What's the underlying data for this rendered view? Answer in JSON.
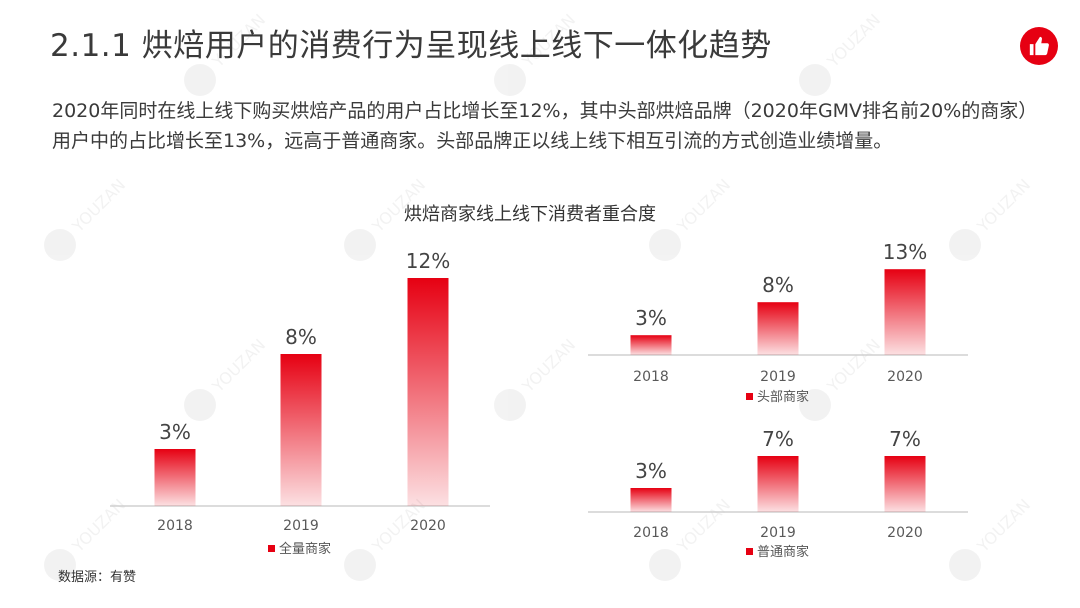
{
  "title": "2.1.1 烘焙用户的消费行为呈现线上线下一体化趋势",
  "description": "2020年同时在线上线下购买烘焙产品的用户占比增长至12%，其中头部烘焙品牌（2020年GMV排名前20%的商家）用户中的占比增长至13%，远高于普通商家。头部品牌正以线上线下相互引流的方式创造业绩增量。",
  "chart_title": "烘焙商家线上线下消费者重合度",
  "source": "数据源：有赞",
  "watermark_text": "YOUZAN",
  "brand_color": "#e60012",
  "chart_data": [
    {
      "type": "bar",
      "categories": [
        "2018",
        "2019",
        "2020"
      ],
      "series": [
        {
          "name": "全量商家",
          "values": [
            3,
            8,
            12
          ]
        }
      ],
      "value_labels": [
        "3%",
        "8%",
        "12%"
      ],
      "unit": "%",
      "legend": "bottom"
    },
    {
      "type": "bar",
      "categories": [
        "2018",
        "2019",
        "2020"
      ],
      "series": [
        {
          "name": "头部商家",
          "values": [
            3,
            8,
            13
          ]
        }
      ],
      "value_labels": [
        "3%",
        "8%",
        "13%"
      ],
      "unit": "%",
      "legend": "bottom"
    },
    {
      "type": "bar",
      "categories": [
        "2018",
        "2019",
        "2020"
      ],
      "series": [
        {
          "name": "普通商家",
          "values": [
            3,
            7,
            7
          ]
        }
      ],
      "value_labels": [
        "3%",
        "7%",
        "7%"
      ],
      "unit": "%",
      "legend": "bottom"
    }
  ]
}
